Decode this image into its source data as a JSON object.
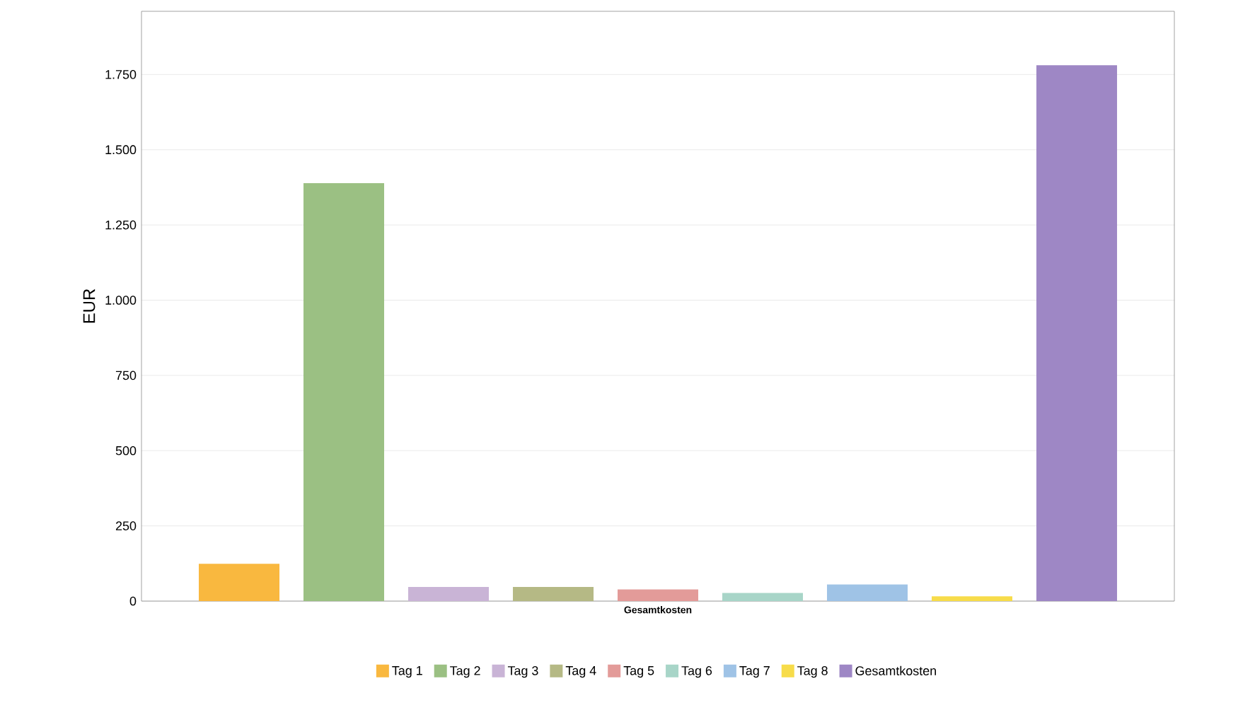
{
  "chart_data": {
    "type": "bar",
    "ylabel": "EUR",
    "categories": [
      "Gesamtkosten"
    ],
    "series": [
      {
        "name": "Tag 1",
        "color": "#f9b83f",
        "values": [
          124
        ]
      },
      {
        "name": "Tag 2",
        "color": "#9bc083",
        "values": [
          1389
        ]
      },
      {
        "name": "Tag 3",
        "color": "#c9b4d6",
        "values": [
          47
        ]
      },
      {
        "name": "Tag 4",
        "color": "#b5b985",
        "values": [
          47
        ]
      },
      {
        "name": "Tag 5",
        "color": "#e39b99",
        "values": [
          39
        ]
      },
      {
        "name": "Tag 6",
        "color": "#a8d5c8",
        "values": [
          27
        ]
      },
      {
        "name": "Tag 7",
        "color": "#9fc3e6",
        "values": [
          55
        ]
      },
      {
        "name": "Tag 8",
        "color": "#f7dc4a",
        "values": [
          16
        ]
      },
      {
        "name": "Gesamtkosten",
        "color": "#9e87c5",
        "values": [
          1781
        ]
      }
    ],
    "ylim": [
      0,
      1960
    ],
    "yticks": [
      0,
      250,
      500,
      750,
      {
        "value": 1000,
        "label": "1.000"
      },
      {
        "value": 1250,
        "label": "1.250"
      },
      {
        "value": 1500,
        "label": "1.500"
      },
      {
        "value": 1750,
        "label": "1.750"
      }
    ],
    "grid": "y",
    "legend": "bottom"
  }
}
